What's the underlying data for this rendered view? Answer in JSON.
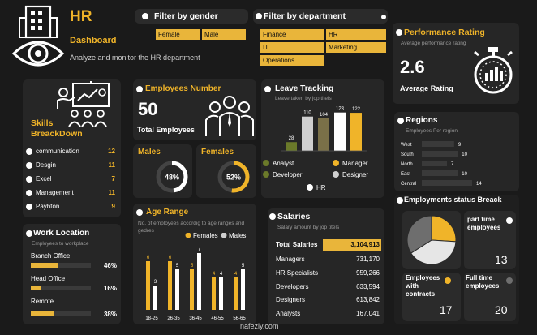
{
  "header": {
    "title": "HR",
    "subtitle": "Dashboard",
    "description": "Analyze and monitor the HR department"
  },
  "filters": {
    "gender": {
      "label": "Filter by gender",
      "options": [
        "Female",
        "Male"
      ]
    },
    "department": {
      "label": "Filter by department",
      "options": [
        "Finance",
        "HR",
        "IT",
        "Marketing",
        "Operations"
      ]
    }
  },
  "performance": {
    "title": "Performance Rating",
    "subtitle": "Average performance rating",
    "value": "2.6",
    "caption": "Average Rating"
  },
  "skills": {
    "title_line1": "Skills",
    "title_line2": "BreackDown",
    "items": [
      {
        "label": "communication",
        "value": "12"
      },
      {
        "label": "Desgin",
        "value": "11"
      },
      {
        "label": "Excel",
        "value": "7"
      },
      {
        "label": "Management",
        "value": "11"
      },
      {
        "label": "Payhton",
        "value": "9"
      }
    ]
  },
  "employees": {
    "title": "Employees Number",
    "value": "50",
    "caption": "Total Employees",
    "males_label": "Males",
    "females_label": "Females",
    "males_pct": "48%",
    "females_pct": "52%",
    "males_frac": 0.48,
    "females_frac": 0.52
  },
  "work_location": {
    "title": "Work Location",
    "subtitle": "Employees to workplace",
    "items": [
      {
        "label": "Branch Office",
        "value": "46%",
        "frac": 0.46
      },
      {
        "label": "Head Office",
        "value": "16%",
        "frac": 0.16
      },
      {
        "label": "Remote",
        "value": "38%",
        "frac": 0.38
      }
    ]
  },
  "employment_status": {
    "title": "Employments status Breack",
    "part_time_label": "part time employees",
    "part_time_value": "13",
    "contracts_label": "Employees with contracts",
    "contracts_value": "17",
    "full_time_label": "Full time employees",
    "full_time_value": "20"
  },
  "colors": {
    "accent": "#f0b429",
    "panel": "#262626",
    "background": "#1a1a1a"
  },
  "watermark": "nafezly.com",
  "chart_data": [
    {
      "id": "leave",
      "type": "bar",
      "title": "Leave Tracking",
      "subtitle": "Leave taken by jop titels",
      "categories": [
        "Analyst",
        "Developer",
        "Manager",
        "Designer",
        "HR"
      ],
      "values": [
        28,
        110,
        104,
        123,
        122
      ],
      "colors": [
        "#6b7a2a",
        "#cfcfcf",
        "#7a7048",
        "#ffffff",
        "#f0b429"
      ],
      "ylim": [
        0,
        130
      ]
    },
    {
      "id": "regions",
      "type": "bar",
      "orientation": "horizontal",
      "title": "Regions",
      "subtitle": "Employees Per region",
      "categories": [
        "West",
        "South",
        "North",
        "East",
        "Central"
      ],
      "values": [
        9,
        10,
        7,
        10,
        14
      ],
      "xlim": [
        0,
        14
      ]
    },
    {
      "id": "age",
      "type": "bar",
      "title": "Age Range",
      "subtitle": "No. of employees accordig to age ranges and gedres",
      "categories": [
        "18-25",
        "26-35",
        "36-45",
        "46-55",
        "56-65"
      ],
      "series": [
        {
          "name": "Females",
          "values": [
            6,
            6,
            5,
            4,
            4
          ]
        },
        {
          "name": "Males",
          "values": [
            3,
            5,
            7,
            4,
            5
          ]
        }
      ],
      "ylim": [
        0,
        8
      ]
    },
    {
      "id": "salaries",
      "type": "table",
      "title": "Salaries",
      "subtitle": "Salary amount by jop titels",
      "rows": [
        {
          "label": "Total Salaries",
          "value": "3,104,913"
        },
        {
          "label": "Managers",
          "value": "731,170"
        },
        {
          "label": "HR Specialists",
          "value": "959,266"
        },
        {
          "label": "Developers",
          "value": "633,594"
        },
        {
          "label": "Designers",
          "value": "613,842"
        },
        {
          "label": "Analysts",
          "value": "167,041"
        }
      ]
    },
    {
      "id": "status",
      "type": "pie",
      "categories": [
        "Full time",
        "Contracts",
        "Part time"
      ],
      "values": [
        20,
        17,
        13
      ],
      "colors": [
        "#e6e6e6",
        "#6e6e6e",
        "#f0b429"
      ]
    }
  ]
}
